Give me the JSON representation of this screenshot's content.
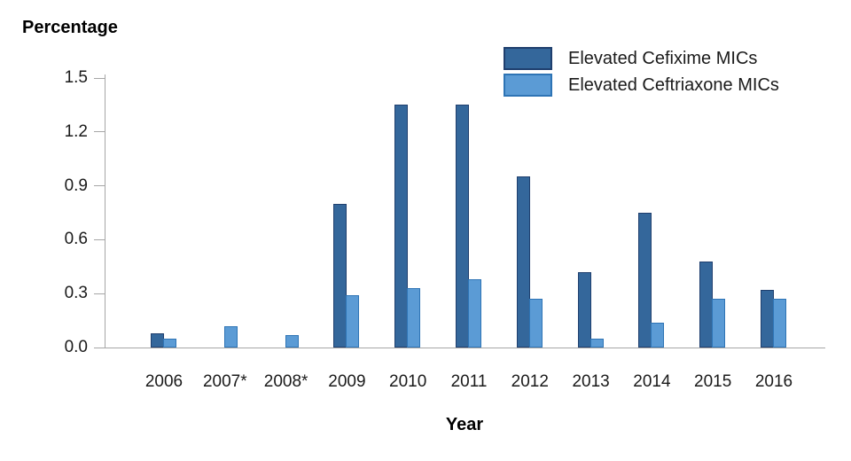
{
  "chart_data": {
    "type": "bar",
    "title": "",
    "ylabel": "Percentage",
    "xlabel": "Year",
    "ylim": [
      0,
      1.5
    ],
    "yticks": [
      0.0,
      0.3,
      0.6,
      0.9,
      1.2,
      1.5
    ],
    "ytick_labels": [
      "0.0",
      "0.3",
      "0.6",
      "0.9",
      "1.2",
      "1.5"
    ],
    "grid": false,
    "legend_position": "top-right",
    "categories": [
      "2006",
      "2007*",
      "2008*",
      "2009",
      "2010",
      "2011",
      "2012",
      "2013",
      "2014",
      "2015",
      "2016"
    ],
    "series": [
      {
        "name": "Elevated Cefixime MICs",
        "values": [
          0.08,
          null,
          null,
          0.8,
          1.35,
          1.35,
          0.95,
          0.42,
          0.75,
          0.48,
          0.32
        ],
        "color": "#34679B",
        "border_color": "#1F3F6E"
      },
      {
        "name": "Elevated Ceftriaxone MICs",
        "values": [
          0.05,
          0.12,
          0.07,
          0.29,
          0.33,
          0.38,
          0.27,
          0.05,
          0.14,
          0.27,
          0.27
        ],
        "color": "#5B9BD5",
        "border_color": "#2E74B5"
      }
    ],
    "axis_color": "#A6A6A6",
    "text_color": "#1A1A1A"
  }
}
